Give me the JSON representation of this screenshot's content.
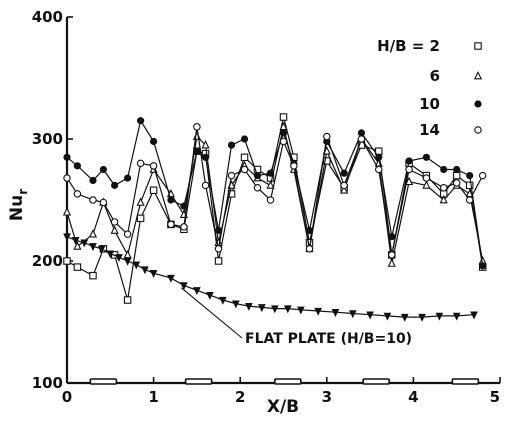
{
  "chart_data": {
    "type": "line",
    "title": "",
    "xlabel": "X/B",
    "ylabel": "Nu",
    "ylabel_sub": "r",
    "xlim": [
      0,
      5
    ],
    "ylim": [
      100,
      400
    ],
    "x_ticks": [
      "0",
      "1",
      "2",
      "3",
      "4",
      "5"
    ],
    "y_ticks": [
      "100",
      "200",
      "300",
      "400"
    ],
    "grid": false,
    "legend_position": "top-right",
    "legend": [
      {
        "label": "H/B = 2",
        "marker": "open-square"
      },
      {
        "label": "6",
        "marker": "open-triangle"
      },
      {
        "label": "10",
        "marker": "filled-circle"
      },
      {
        "label": "14",
        "marker": "open-circle"
      }
    ],
    "annotation": "FLAT  PLATE (H/B=10)",
    "heater_positions_x": [
      0.42,
      1.52,
      2.55,
      3.57,
      4.6
    ],
    "series": [
      {
        "name": "H/B = 2",
        "marker": "open-square",
        "x": [
          0,
          0.12,
          0.3,
          0.42,
          0.55,
          0.7,
          0.85,
          1.0,
          1.2,
          1.35,
          1.5,
          1.6,
          1.75,
          1.9,
          2.05,
          2.2,
          2.35,
          2.5,
          2.62,
          2.8,
          3.0,
          3.2,
          3.4,
          3.6,
          3.75,
          3.95,
          4.15,
          4.35,
          4.5,
          4.65,
          4.8
        ],
        "y": [
          200,
          195,
          188,
          210,
          205,
          168,
          235,
          258,
          230,
          226,
          290,
          288,
          200,
          255,
          285,
          275,
          268,
          318,
          285,
          215,
          282,
          260,
          295,
          290,
          205,
          280,
          270,
          255,
          270,
          262,
          195
        ]
      },
      {
        "name": "6",
        "marker": "open-triangle",
        "x": [
          0,
          0.12,
          0.3,
          0.42,
          0.55,
          0.7,
          0.85,
          1.0,
          1.2,
          1.35,
          1.5,
          1.6,
          1.75,
          1.9,
          2.05,
          2.2,
          2.35,
          2.5,
          2.62,
          2.8,
          3.0,
          3.2,
          3.4,
          3.6,
          3.75,
          3.95,
          4.15,
          4.35,
          4.5,
          4.65,
          4.8
        ],
        "y": [
          240,
          212,
          222,
          248,
          225,
          205,
          248,
          275,
          255,
          238,
          302,
          295,
          215,
          262,
          278,
          268,
          262,
          310,
          275,
          210,
          290,
          258,
          300,
          280,
          198,
          265,
          262,
          250,
          262,
          255,
          200
        ]
      },
      {
        "name": "10",
        "marker": "filled-circle",
        "x": [
          0,
          0.12,
          0.3,
          0.42,
          0.55,
          0.7,
          0.85,
          1.0,
          1.2,
          1.35,
          1.5,
          1.6,
          1.75,
          1.9,
          2.05,
          2.2,
          2.35,
          2.5,
          2.62,
          2.8,
          3.0,
          3.2,
          3.4,
          3.6,
          3.75,
          3.95,
          4.15,
          4.35,
          4.5,
          4.65,
          4.8
        ],
        "y": [
          285,
          278,
          266,
          275,
          262,
          268,
          315,
          298,
          250,
          245,
          290,
          285,
          225,
          295,
          300,
          270,
          272,
          305,
          280,
          225,
          298,
          272,
          305,
          285,
          220,
          282,
          285,
          275,
          275,
          270,
          196
        ]
      },
      {
        "name": "14",
        "marker": "open-circle",
        "x": [
          0,
          0.12,
          0.3,
          0.42,
          0.55,
          0.7,
          0.85,
          1.0,
          1.2,
          1.35,
          1.5,
          1.6,
          1.75,
          1.9,
          2.05,
          2.2,
          2.35,
          2.5,
          2.62,
          2.8,
          3.0,
          3.2,
          3.4,
          3.6,
          3.75,
          3.95,
          4.15,
          4.35,
          4.5,
          4.65,
          4.8
        ],
        "y": [
          268,
          255,
          250,
          248,
          232,
          222,
          280,
          278,
          230,
          228,
          310,
          262,
          210,
          270,
          275,
          260,
          250,
          298,
          278,
          210,
          302,
          262,
          300,
          275,
          205,
          275,
          268,
          260,
          264,
          250,
          270
        ]
      },
      {
        "name": "FLAT  PLATE (H/B=10)",
        "marker": "filled-triangle-down",
        "x": [
          0,
          0.1,
          0.2,
          0.3,
          0.4,
          0.5,
          0.6,
          0.7,
          0.8,
          0.9,
          1.0,
          1.2,
          1.35,
          1.5,
          1.65,
          1.8,
          1.95,
          2.1,
          2.25,
          2.4,
          2.55,
          2.7,
          2.9,
          3.1,
          3.3,
          3.5,
          3.7,
          3.9,
          4.1,
          4.3,
          4.5,
          4.7
        ],
        "y": [
          220,
          217,
          215,
          212,
          210,
          206,
          203,
          200,
          197,
          193,
          190,
          186,
          180,
          176,
          172,
          168,
          165,
          163,
          162,
          161,
          161,
          160,
          159,
          158,
          157,
          156,
          155,
          154,
          154,
          155,
          155,
          156
        ]
      }
    ]
  }
}
